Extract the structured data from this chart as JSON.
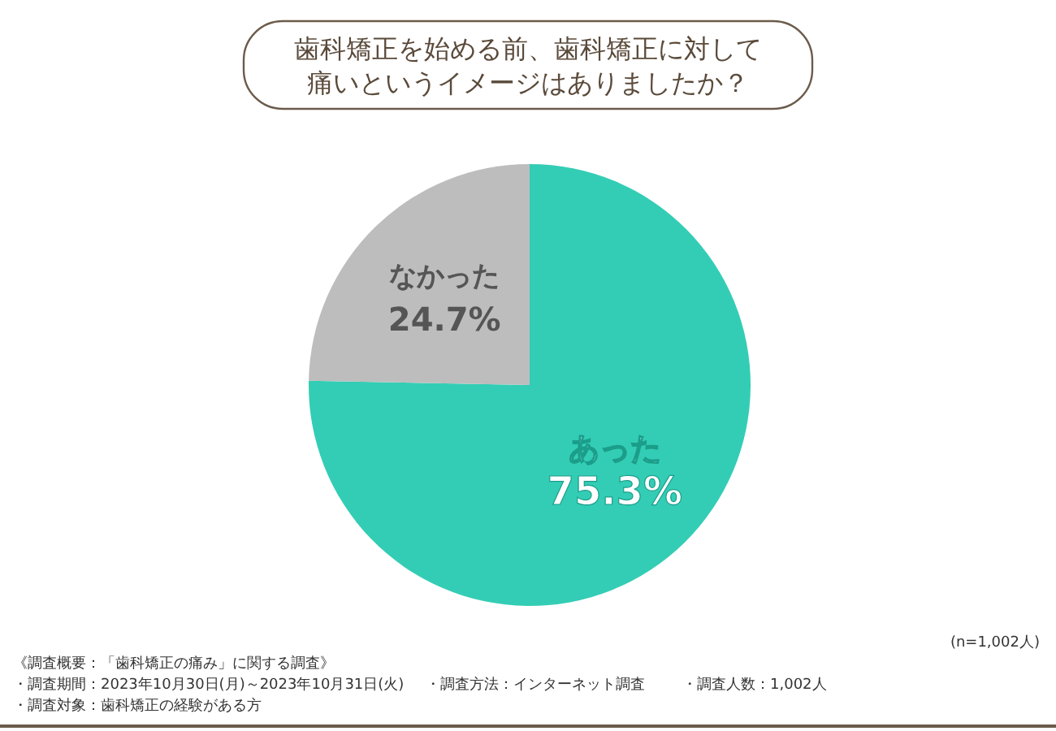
{
  "chart_data": {
    "type": "pie",
    "title": "歯科矯正を始める前、歯科矯正に対して痛いというイメージはありましたか？",
    "categories": [
      "あった",
      "なかった"
    ],
    "values": [
      75.3,
      24.7
    ],
    "colors": [
      "#33cdb5",
      "#bdbdbd"
    ],
    "value_labels": [
      "75.3%",
      "24.7%"
    ],
    "annotations": [
      "(n=1,002人)",
      "《調査概要：「歯科矯正の痛み」に関する調査》",
      "・調査期間：2023年10月30日(月)～2023年10月31日(火)",
      "・調査対象：歯科矯正の経験がある方",
      "・調査方法：インターネット調査",
      "・調査人数：1,002人"
    ]
  }
}
